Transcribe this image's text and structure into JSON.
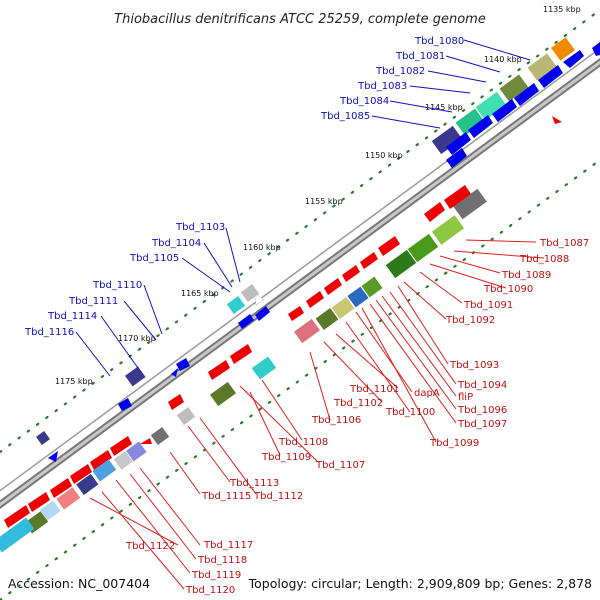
{
  "title": "Thiobacillus denitrificans ATCC 25259, complete genome",
  "footer": {
    "accession": "Accession: NC_007404",
    "topology": "Topology: circular; Length: 2,909,809 bp; Genes: 2,878"
  },
  "ruler": [
    "1135 kbp",
    "1140 kbp",
    "1145 kbp",
    "1150 kbp",
    "1155 kbp",
    "1160 kbp",
    "1165 kbp",
    "1170 kbp",
    "1175 kbp"
  ],
  "labels": {
    "tbd_1080": "Tbd_1080",
    "tbd_1081": "Tbd_1081",
    "tbd_1082": "Tbd_1082",
    "tbd_1083": "Tbd_1083",
    "tbd_1084": "Tbd_1084",
    "tbd_1085": "Tbd_1085",
    "tbd_1103": "Tbd_1103",
    "tbd_1104": "Tbd_1104",
    "tbd_1105": "Tbd_1105",
    "tbd_1110": "Tbd_1110",
    "tbd_1111": "Tbd_1111",
    "tbd_1114": "Tbd_1114",
    "tbd_1116": "Tbd_1116",
    "tbd_1087": "Tbd_1087",
    "tbd_1088": "Tbd_1088",
    "tbd_1089": "Tbd_1089",
    "tbd_1090": "Tbd_1090",
    "tbd_1091": "Tbd_1091",
    "tbd_1092": "Tbd_1092",
    "tbd_1093": "Tbd_1093",
    "tbd_1094": "Tbd_1094",
    "flip": "fliP",
    "tbd_1096": "Tbd_1096",
    "tbd_1097": "Tbd_1097",
    "tbd_1099": "Tbd_1099",
    "dapa": "dapA",
    "tbd_1100": "Tbd_1100",
    "tbd_1101": "Tbd_1101",
    "tbd_1102": "Tbd_1102",
    "tbd_1106": "Tbd_1106",
    "tbd_1108": "Tbd_1108",
    "tbd_1109": "Tbd_1109",
    "tbd_1107": "Tbd_1107",
    "tbd_1113": "Tbd_1113",
    "tbd_1115": "Tbd_1115",
    "tbd_1112": "Tbd_1112",
    "tbd_1117": "Tbd_1117",
    "tbd_1118": "Tbd_1118",
    "tbd_1119": "Tbd_1119",
    "tbd_1120": "Tbd_1120",
    "tbd_1122": "Tbd_1122"
  },
  "colors": {
    "forward_strand": "#ff0000",
    "reverse_strand": "#0000ff",
    "backbone": "#808080",
    "ruler_ticks": "#2a7a2a",
    "label_blue": "#1010c0",
    "label_red": "#c01010"
  }
}
